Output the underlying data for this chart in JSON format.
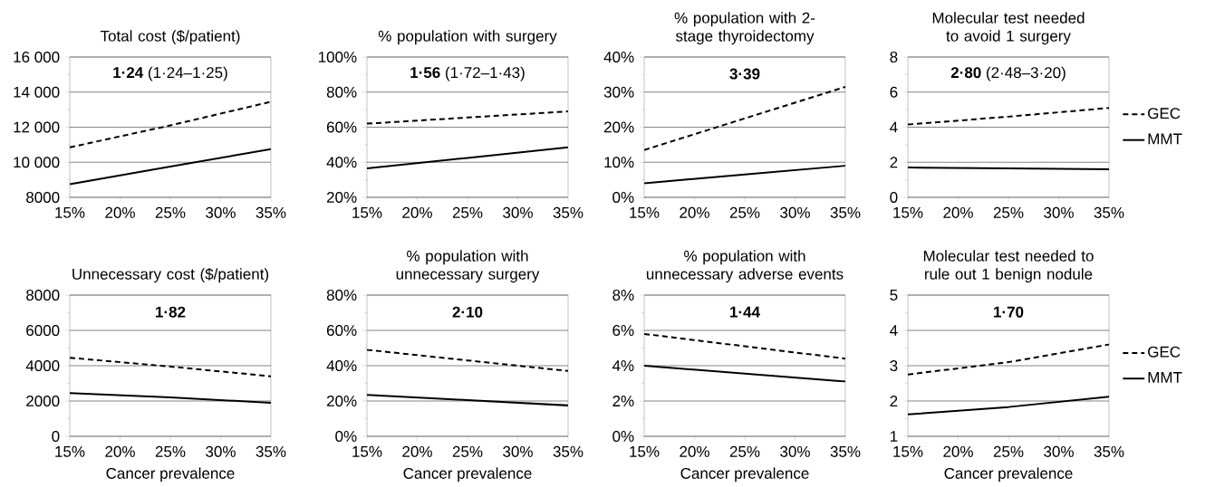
{
  "chart_data": [
    {
      "type": "line",
      "title": "Total cost ($/patient)",
      "annotations": [
        "**1·24** (1·24–1·25)"
      ],
      "x": [
        15,
        25,
        35
      ],
      "xlim": [
        15,
        35
      ],
      "xticks": [
        {
          "value": 15,
          "label": "15%"
        },
        {
          "value": 20,
          "label": "20%"
        },
        {
          "value": 25,
          "label": "25%"
        },
        {
          "value": 30,
          "label": "30%"
        },
        {
          "value": 35,
          "label": "35%"
        }
      ],
      "ylim": [
        8000,
        16000
      ],
      "yticks": [
        8000,
        {
          "value": 10000,
          "label": "10 000"
        },
        {
          "value": 12000,
          "label": "12 000"
        },
        {
          "value": 14000,
          "label": "14 000"
        },
        {
          "value": 16000,
          "label": "16 000"
        }
      ],
      "grid": "y",
      "legend": false,
      "series": [
        {
          "color": "#000000",
          "line_style": "dashed",
          "values": [
            10850,
            12100,
            13450
          ]
        },
        {
          "color": "#000000",
          "line_style": "solid",
          "values": [
            8750,
            9750,
            10750
          ]
        }
      ]
    },
    {
      "type": "line",
      "title": "% population with surgery",
      "annotations": [
        "**1·56** (1·72–1·43)"
      ],
      "x": [
        15,
        25,
        35
      ],
      "xlim": [
        15,
        35
      ],
      "xticks": [
        {
          "value": 15,
          "label": "15%"
        },
        {
          "value": 20,
          "label": "20%"
        },
        {
          "value": 25,
          "label": "25%"
        },
        {
          "value": 30,
          "label": "30%"
        },
        {
          "value": 35,
          "label": "35%"
        }
      ],
      "ylim": [
        20,
        100
      ],
      "yticks": [
        {
          "value": 20,
          "label": "20%"
        },
        {
          "value": 40,
          "label": "40%"
        },
        {
          "value": 60,
          "label": "60%"
        },
        {
          "value": 80,
          "label": "80%"
        },
        {
          "value": 100,
          "label": "100%"
        }
      ],
      "grid": "y",
      "legend": false,
      "series": [
        {
          "color": "#000000",
          "line_style": "dashed",
          "values": [
            62,
            65.5,
            69
          ]
        },
        {
          "color": "#000000",
          "line_style": "solid",
          "values": [
            36.5,
            42.5,
            48.5
          ]
        }
      ]
    },
    {
      "type": "line",
      "title": "% population with 2-stage thyroidectomy",
      "annotations": [
        "**3·39**"
      ],
      "x": [
        15,
        25,
        35
      ],
      "xlim": [
        15,
        35
      ],
      "xticks": [
        {
          "value": 15,
          "label": "15%"
        },
        {
          "value": 20,
          "label": "20%"
        },
        {
          "value": 25,
          "label": "25%"
        },
        {
          "value": 30,
          "label": "30%"
        },
        {
          "value": 35,
          "label": "35%"
        }
      ],
      "ylim": [
        0,
        40
      ],
      "yticks": [
        {
          "value": 0,
          "label": "0%"
        },
        {
          "value": 10,
          "label": "10%"
        },
        {
          "value": 20,
          "label": "20%"
        },
        {
          "value": 30,
          "label": "30%"
        },
        {
          "value": 40,
          "label": "40%"
        }
      ],
      "grid": "y",
      "legend": false,
      "series": [
        {
          "color": "#000000",
          "line_style": "dashed",
          "values": [
            13.5,
            22.5,
            31.5
          ]
        },
        {
          "color": "#000000",
          "line_style": "solid",
          "values": [
            4,
            6.5,
            9
          ]
        }
      ]
    },
    {
      "type": "line",
      "title": "Molecular test needed to avoid 1 surgery",
      "annotations": [
        "**2·80** (2·48–3·20)"
      ],
      "x": [
        15,
        25,
        35
      ],
      "xlim": [
        15,
        35
      ],
      "xticks": [
        {
          "value": 15,
          "label": "15%"
        },
        {
          "value": 20,
          "label": "20%"
        },
        {
          "value": 25,
          "label": "25%"
        },
        {
          "value": 30,
          "label": "30%"
        },
        {
          "value": 35,
          "label": "35%"
        }
      ],
      "ylim": [
        0,
        8
      ],
      "yticks": [
        0,
        2,
        4,
        6,
        8
      ],
      "grid": "y",
      "legend": "right",
      "series": [
        {
          "name": "GEC",
          "color": "#000000",
          "line_style": "dashed",
          "values": [
            4.15,
            4.6,
            5.1
          ]
        },
        {
          "name": "MMT",
          "color": "#000000",
          "line_style": "solid",
          "values": [
            1.7,
            1.65,
            1.6
          ]
        }
      ]
    },
    {
      "type": "line",
      "title": "Unnecessary cost ($/patient)",
      "xlabel": "Cancer prevalence",
      "annotations": [
        "**1·82**"
      ],
      "x": [
        15,
        25,
        35
      ],
      "xlim": [
        15,
        35
      ],
      "xticks": [
        {
          "value": 15,
          "label": "15%"
        },
        {
          "value": 20,
          "label": "20%"
        },
        {
          "value": 25,
          "label": "25%"
        },
        {
          "value": 30,
          "label": "30%"
        },
        {
          "value": 35,
          "label": "35%"
        }
      ],
      "ylim": [
        0,
        8000
      ],
      "yticks": [
        0,
        2000,
        4000,
        6000,
        8000
      ],
      "grid": "y",
      "legend": false,
      "series": [
        {
          "color": "#000000",
          "line_style": "dashed",
          "values": [
            4450,
            3950,
            3400
          ]
        },
        {
          "color": "#000000",
          "line_style": "solid",
          "values": [
            2450,
            2200,
            1900
          ]
        }
      ]
    },
    {
      "type": "line",
      "title": "% population with unnecessary surgery",
      "xlabel": "Cancer prevalence",
      "annotations": [
        "**2·10**"
      ],
      "x": [
        15,
        25,
        35
      ],
      "xlim": [
        15,
        35
      ],
      "xticks": [
        {
          "value": 15,
          "label": "15%"
        },
        {
          "value": 20,
          "label": "20%"
        },
        {
          "value": 25,
          "label": "25%"
        },
        {
          "value": 30,
          "label": "30%"
        },
        {
          "value": 35,
          "label": "35%"
        }
      ],
      "ylim": [
        0,
        80
      ],
      "yticks": [
        {
          "value": 0,
          "label": "0%"
        },
        {
          "value": 20,
          "label": "20%"
        },
        {
          "value": 40,
          "label": "40%"
        },
        {
          "value": 60,
          "label": "60%"
        },
        {
          "value": 80,
          "label": "80%"
        }
      ],
      "grid": "y",
      "legend": false,
      "series": [
        {
          "color": "#000000",
          "line_style": "dashed",
          "values": [
            49,
            43,
            37
          ]
        },
        {
          "color": "#000000",
          "line_style": "solid",
          "values": [
            23.5,
            20.5,
            17.5
          ]
        }
      ]
    },
    {
      "type": "line",
      "title": "% population with unnecessary adverse events",
      "xlabel": "Cancer prevalence",
      "annotations": [
        "**1·44**"
      ],
      "x": [
        15,
        25,
        35
      ],
      "xlim": [
        15,
        35
      ],
      "xticks": [
        {
          "value": 15,
          "label": "15%"
        },
        {
          "value": 20,
          "label": "20%"
        },
        {
          "value": 25,
          "label": "25%"
        },
        {
          "value": 30,
          "label": "30%"
        },
        {
          "value": 35,
          "label": "35%"
        }
      ],
      "ylim": [
        0,
        8
      ],
      "yticks": [
        {
          "value": 0,
          "label": "0%"
        },
        {
          "value": 2,
          "label": "2%"
        },
        {
          "value": 4,
          "label": "4%"
        },
        {
          "value": 6,
          "label": "6%"
        },
        {
          "value": 8,
          "label": "8%"
        }
      ],
      "grid": "y",
      "legend": false,
      "series": [
        {
          "color": "#000000",
          "line_style": "dashed",
          "values": [
            5.8,
            5.1,
            4.4
          ]
        },
        {
          "color": "#000000",
          "line_style": "solid",
          "values": [
            4.0,
            3.55,
            3.1
          ]
        }
      ]
    },
    {
      "type": "line",
      "title": "Molecular test needed to rule out 1 benign nodule",
      "xlabel": "Cancer prevalence",
      "annotations": [
        "**1·70**"
      ],
      "x": [
        15,
        25,
        35
      ],
      "xlim": [
        15,
        35
      ],
      "xticks": [
        {
          "value": 15,
          "label": "15%"
        },
        {
          "value": 20,
          "label": "20%"
        },
        {
          "value": 25,
          "label": "25%"
        },
        {
          "value": 30,
          "label": "30%"
        },
        {
          "value": 35,
          "label": "35%"
        }
      ],
      "ylim": [
        1,
        5
      ],
      "yticks": [
        1,
        2,
        3,
        4,
        5
      ],
      "grid": "y",
      "legend": "right",
      "series": [
        {
          "name": "GEC",
          "color": "#000000",
          "line_style": "dashed",
          "values": [
            2.75,
            3.1,
            3.6
          ]
        },
        {
          "name": "MMT",
          "color": "#000000",
          "line_style": "solid",
          "values": [
            1.62,
            1.83,
            2.12
          ]
        }
      ]
    }
  ]
}
